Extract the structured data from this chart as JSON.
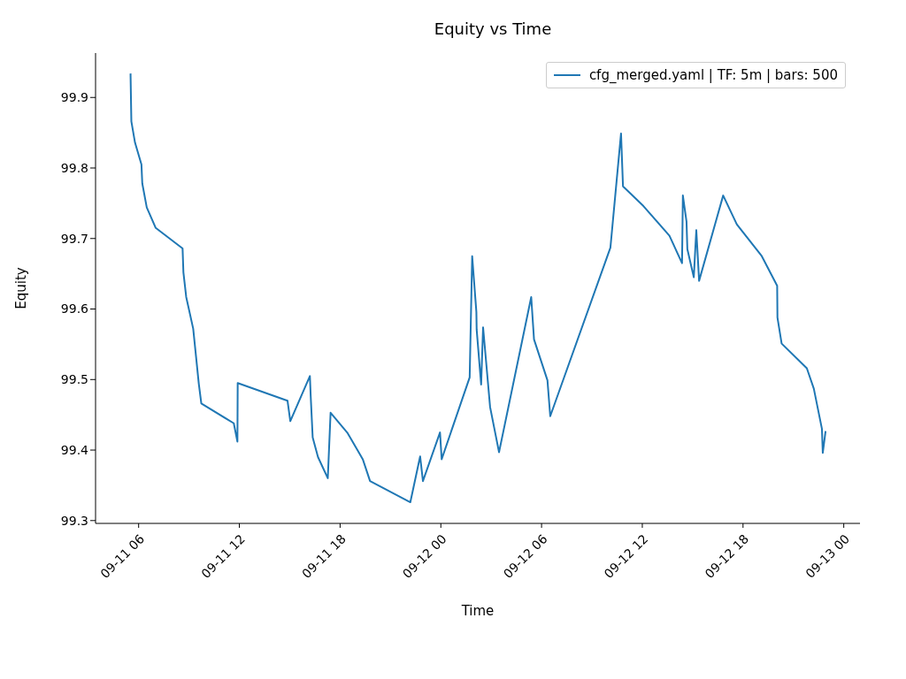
{
  "chart_data": {
    "type": "line",
    "title": "Equity vs Time",
    "xlabel": "Time",
    "ylabel": "Equity",
    "x": [
      "--09-11T05:31",
      "--09-11T05:34",
      "--09-11T05:47",
      "--09-11T06:10",
      "--09-11T06:13",
      "--09-11T06:29",
      "--09-11T07:01",
      "--09-11T08:37",
      "--09-11T08:40",
      "--09-11T08:50",
      "--09-11T09:15",
      "--09-11T09:35",
      "--09-11T09:44",
      "--09-11T11:40",
      "--09-11T11:53",
      "--09-11T11:54",
      "--09-11T14:52",
      "--09-11T15:02",
      "--09-11T16:12",
      "--09-11T16:15",
      "--09-11T16:22",
      "--09-11T16:41",
      "--09-11T17:16",
      "--09-11T17:26",
      "--09-11T18:27",
      "--09-11T19:21",
      "--09-11T19:47",
      "--09-11T22:11",
      "--09-11T22:46",
      "--09-11T22:56",
      "--09-11T23:57",
      "--09-12T00:03",
      "--09-12T01:43",
      "--09-12T01:52",
      "--09-12T02:07",
      "--09-12T02:08",
      "--09-12T02:24",
      "--09-12T02:31",
      "--09-12T02:56",
      "--09-12T03:28",
      "--09-12T05:23",
      "--09-12T05:33",
      "--09-12T06:21",
      "--09-12T06:31",
      "--09-12T10:06",
      "--09-12T10:44",
      "--09-12T10:51",
      "--09-12T12:04",
      "--09-12T13:37",
      "--09-12T14:22",
      "--09-12T14:25",
      "--09-12T14:38",
      "--09-12T14:41",
      "--09-12T15:04",
      "--09-12T15:13",
      "--09-12T15:23",
      "--09-12T16:49",
      "--09-12T17:38",
      "--09-12T19:07",
      "--09-12T20:02",
      "--09-12T20:03",
      "--09-12T20:18",
      "--09-12T21:48",
      "--09-12T22:13",
      "--09-12T22:42",
      "--09-12T22:45",
      "--09-12T22:55"
    ],
    "series": [
      {
        "name": "cfg_merged.yaml | TF: 5m | bars: 500",
        "color": "#1f77b4",
        "values": [
          99.934,
          99.866,
          99.836,
          99.805,
          99.778,
          99.744,
          99.715,
          99.686,
          99.652,
          99.617,
          99.572,
          99.494,
          99.466,
          99.438,
          99.412,
          99.495,
          99.47,
          99.441,
          99.505,
          99.476,
          99.418,
          99.39,
          99.36,
          99.453,
          99.424,
          99.387,
          99.356,
          99.326,
          99.391,
          99.356,
          99.425,
          99.387,
          99.503,
          99.675,
          99.596,
          99.571,
          99.493,
          99.574,
          99.461,
          99.397,
          99.617,
          99.557,
          99.499,
          99.448,
          99.687,
          99.849,
          99.774,
          99.746,
          99.704,
          99.665,
          99.761,
          99.724,
          99.685,
          99.645,
          99.712,
          99.64,
          99.761,
          99.72,
          99.675,
          99.633,
          99.588,
          99.551,
          99.516,
          99.487,
          99.43,
          99.396,
          99.427
        ]
      }
    ],
    "xlim": [
      "--09-11T03:26",
      "--09-13T00:58"
    ],
    "xticks": [
      {
        "value": "--09-11T06:00",
        "label": "09-11 06"
      },
      {
        "value": "--09-11T12:00",
        "label": "09-11 12"
      },
      {
        "value": "--09-11T18:00",
        "label": "09-11 18"
      },
      {
        "value": "--09-12T00:00",
        "label": "09-12 00"
      },
      {
        "value": "--09-12T06:00",
        "label": "09-12 06"
      },
      {
        "value": "--09-12T12:00",
        "label": "09-12 12"
      },
      {
        "value": "--09-12T18:00",
        "label": "09-12 18"
      },
      {
        "value": "--09-13T00:00",
        "label": "09-13 00"
      }
    ],
    "ylim": [
      99.296,
      99.963
    ],
    "yticks": [
      99.3,
      99.4,
      99.5,
      99.6,
      99.7,
      99.8,
      99.9
    ],
    "legend": "top right",
    "grid": false,
    "line_style": "solid"
  }
}
